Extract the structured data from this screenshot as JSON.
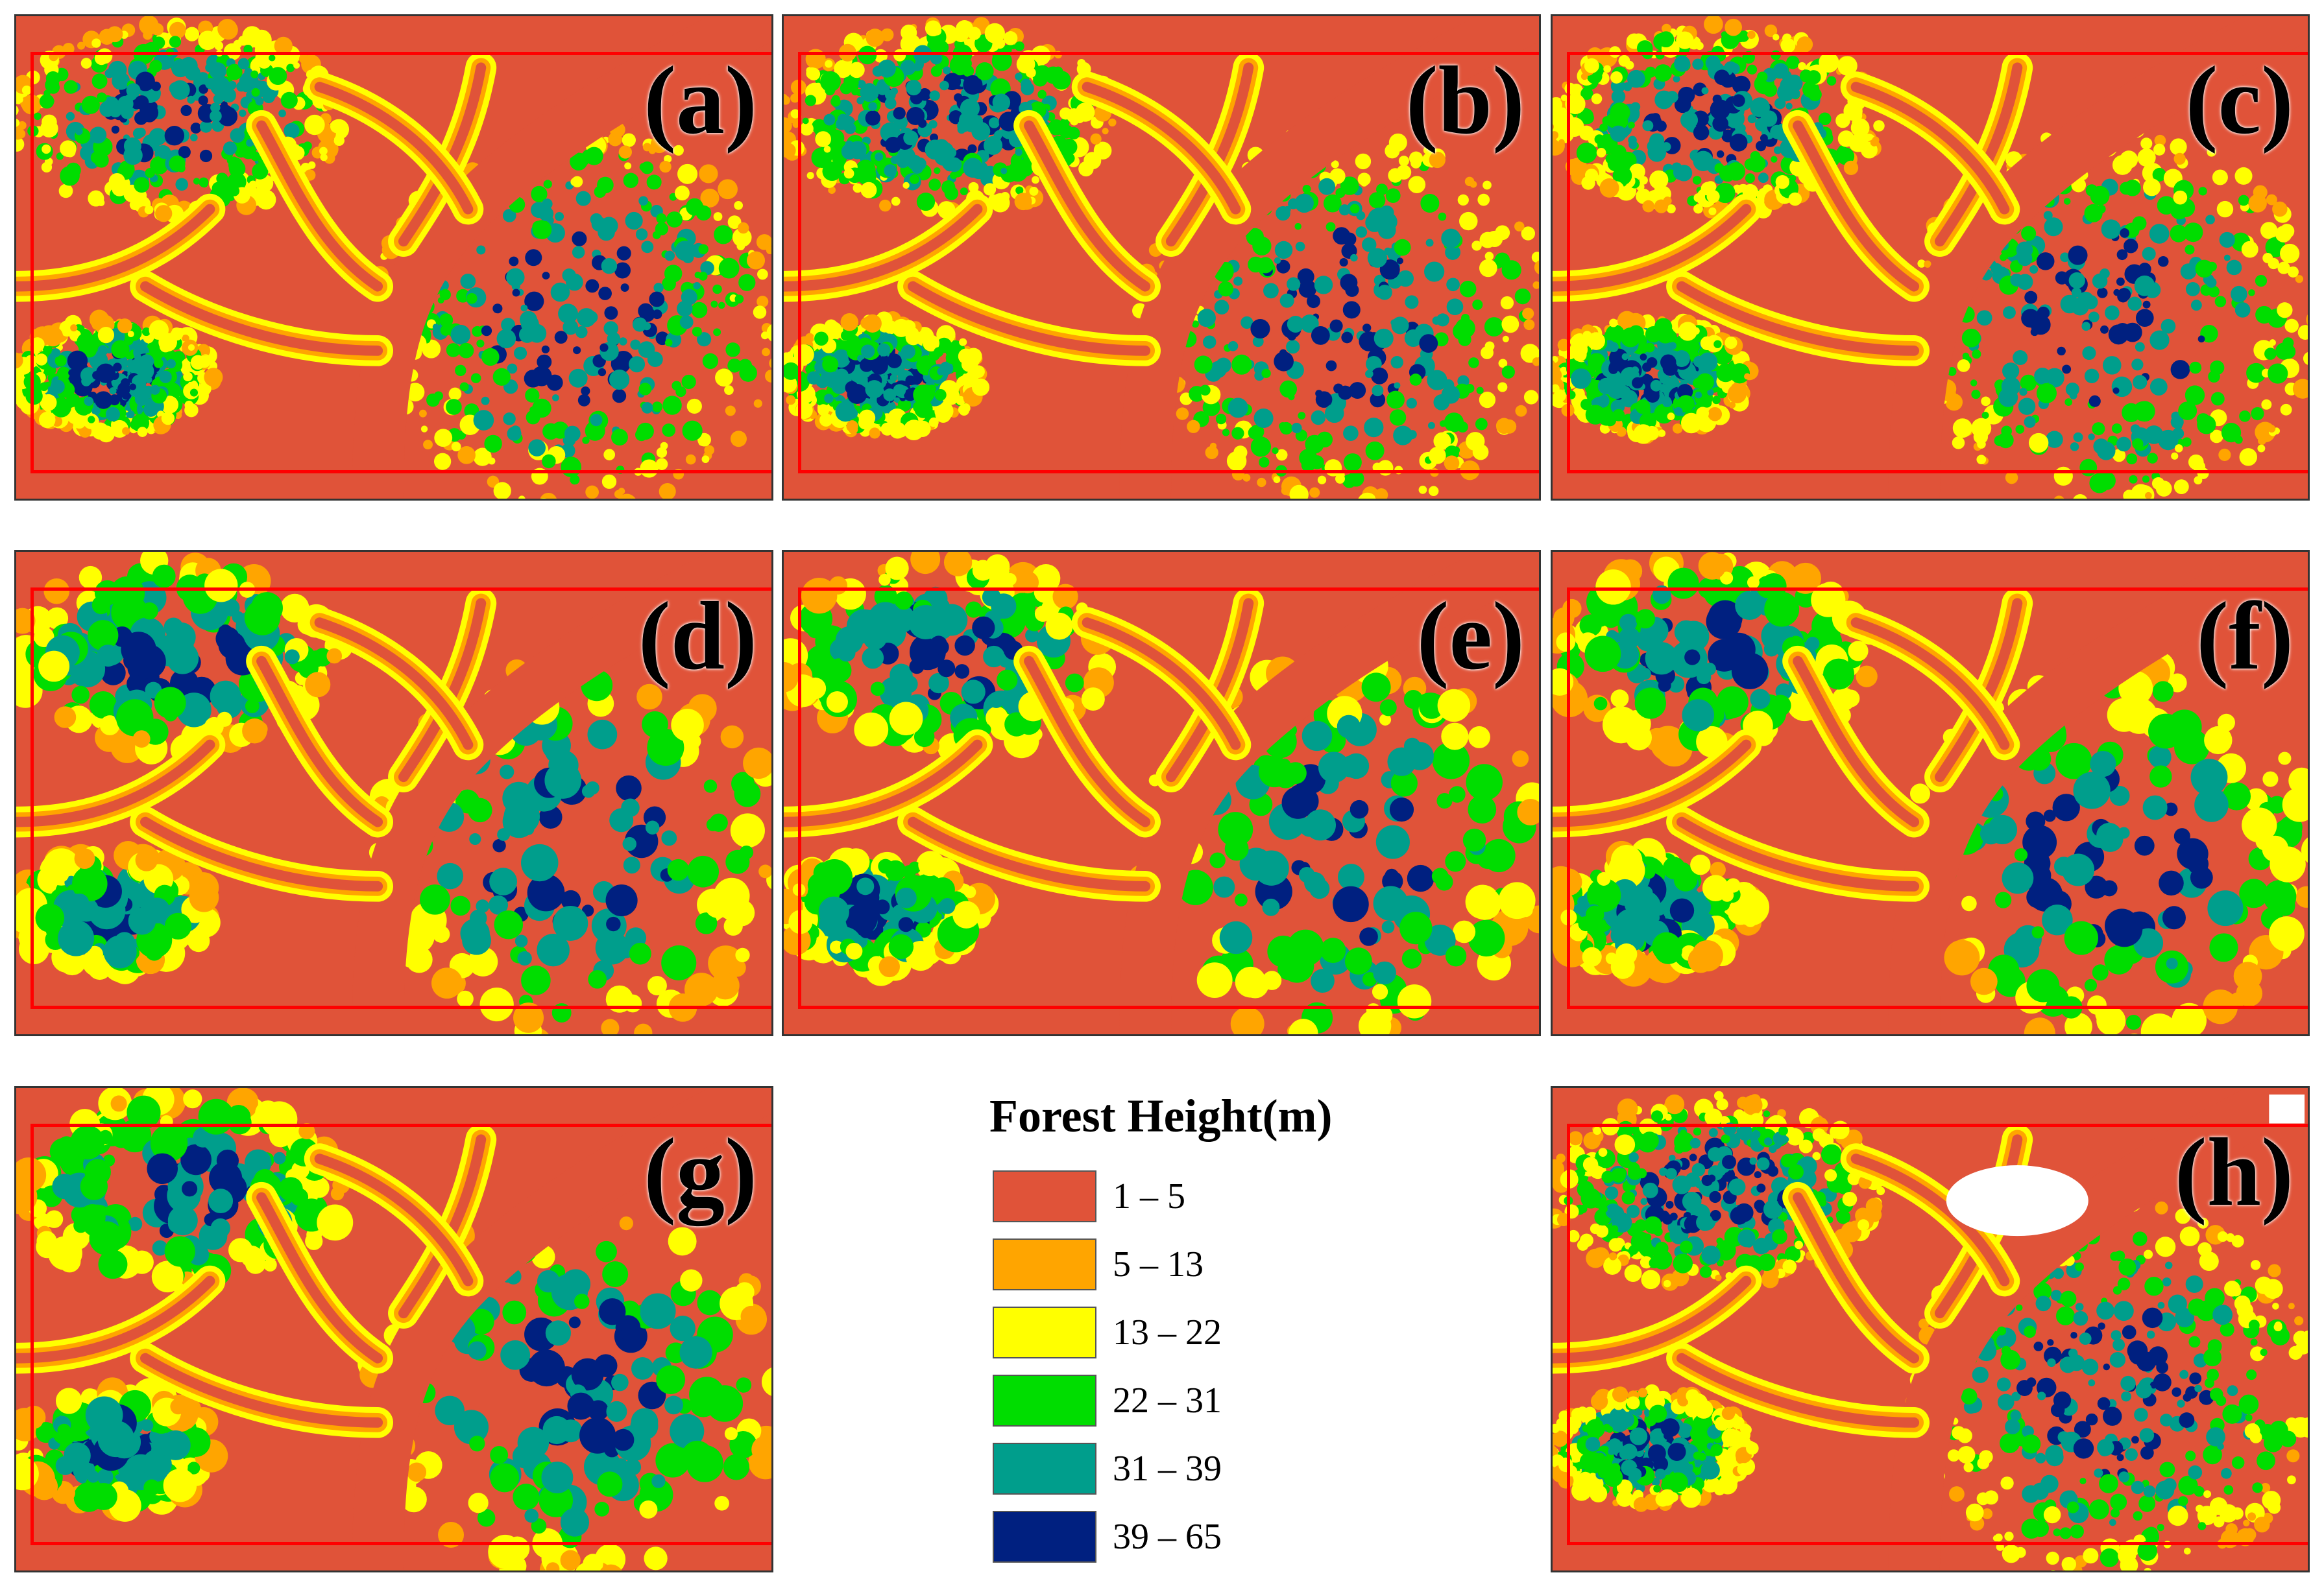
{
  "panels": [
    {
      "id": "a",
      "label": "(a)"
    },
    {
      "id": "b",
      "label": "(b)"
    },
    {
      "id": "c",
      "label": "(c)"
    },
    {
      "id": "d",
      "label": "(d)"
    },
    {
      "id": "e",
      "label": "(e)"
    },
    {
      "id": "f",
      "label": "(f)"
    },
    {
      "id": "g",
      "label": "(g)"
    },
    {
      "id": "h",
      "label": "(h)"
    }
  ],
  "legend": {
    "title": "Forest Height(m)",
    "classes": [
      {
        "label": "1 – 5",
        "color": "#e05339"
      },
      {
        "label": "5 – 13",
        "color": "#ffa500"
      },
      {
        "label": "13 – 22",
        "color": "#ffff00"
      },
      {
        "label": "22 – 31",
        "color": "#00dd00"
      },
      {
        "label": "31 – 39",
        "color": "#009e8c"
      },
      {
        "label": "39 – 65",
        "color": "#002080"
      }
    ]
  },
  "colors": {
    "study_area_outline": "#ff0000",
    "no_data": "#ffffff"
  }
}
